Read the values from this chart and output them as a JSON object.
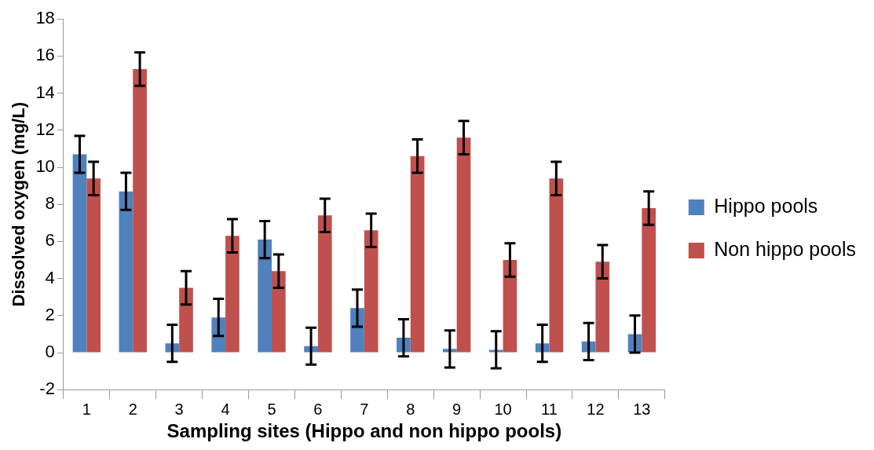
{
  "chart_data": {
    "type": "bar",
    "xlabel": "Sampling sites (Hippo and non hippo pools)",
    "ylabel": "Dissolved oxygen (mg/L)",
    "categories": [
      "1",
      "2",
      "3",
      "4",
      "5",
      "6",
      "7",
      "8",
      "9",
      "10",
      "11",
      "12",
      "13"
    ],
    "series": [
      {
        "name": "Hippo pools",
        "color": "#4f81bd",
        "values": [
          10.7,
          8.7,
          0.5,
          1.9,
          6.1,
          0.35,
          2.4,
          0.8,
          0.2,
          0.15,
          0.5,
          0.6,
          1.0
        ],
        "errors": [
          1,
          1,
          1,
          1,
          1,
          1,
          1,
          1,
          1,
          1,
          1,
          1,
          1
        ]
      },
      {
        "name": "Non hippo pools",
        "color": "#c0504d",
        "values": [
          9.4,
          15.3,
          3.5,
          6.3,
          4.4,
          7.4,
          6.6,
          10.6,
          11.6,
          5.0,
          9.4,
          4.9,
          7.8
        ],
        "errors": [
          0.9,
          0.9,
          0.9,
          0.9,
          0.9,
          0.9,
          0.9,
          0.9,
          0.9,
          0.9,
          0.9,
          0.9,
          0.9
        ]
      }
    ],
    "ylim": [
      -2,
      18
    ],
    "yticks": [
      -2,
      0,
      2,
      4,
      6,
      8,
      10,
      12,
      14,
      16,
      18
    ],
    "grid": false,
    "legend": "right"
  }
}
